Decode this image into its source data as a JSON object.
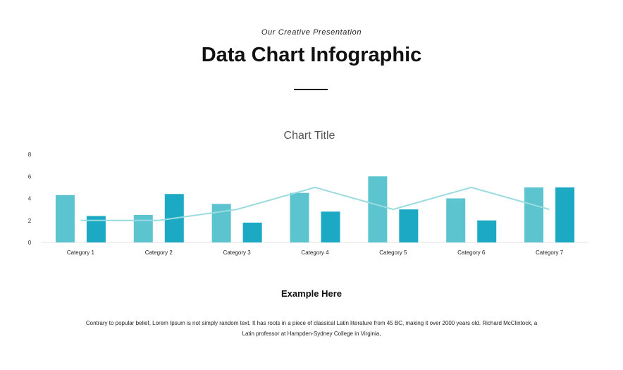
{
  "header": {
    "subtitle": "Our Creative Presentation",
    "title": "Data Chart Infographic"
  },
  "chart_data": {
    "type": "bar",
    "title": "Chart Title",
    "categories": [
      "Category 1",
      "Category 2",
      "Category 3",
      "Category 4",
      "Category 5",
      "Category 6",
      "Category 7"
    ],
    "series": [
      {
        "type": "bar",
        "color": "#5bc4cf",
        "values": [
          4.3,
          2.5,
          3.5,
          4.5,
          6.0,
          4.0,
          5.0
        ]
      },
      {
        "type": "bar",
        "color": "#1ba9c4",
        "values": [
          2.4,
          4.4,
          1.8,
          2.8,
          3.0,
          2.0,
          5.0
        ]
      },
      {
        "type": "line",
        "color": "#9adbe0",
        "values": [
          2.0,
          2.0,
          3.0,
          5.0,
          3.0,
          5.0,
          3.0
        ]
      }
    ],
    "ylim": [
      0,
      8
    ],
    "yticks": [
      0,
      2,
      4,
      6,
      8
    ],
    "xlabel": "",
    "ylabel": "",
    "grid": false,
    "legend": "none"
  },
  "footer": {
    "heading": "Example Here",
    "text": "Contrary to popular belief, Lorem Ipsum is not simply random text. It has roots in a piece of classical Latin literature from 45 BC, making it over 2000 years old. Richard McClintock, a Latin professor at Hampden-Sydney College in Virginia,"
  }
}
